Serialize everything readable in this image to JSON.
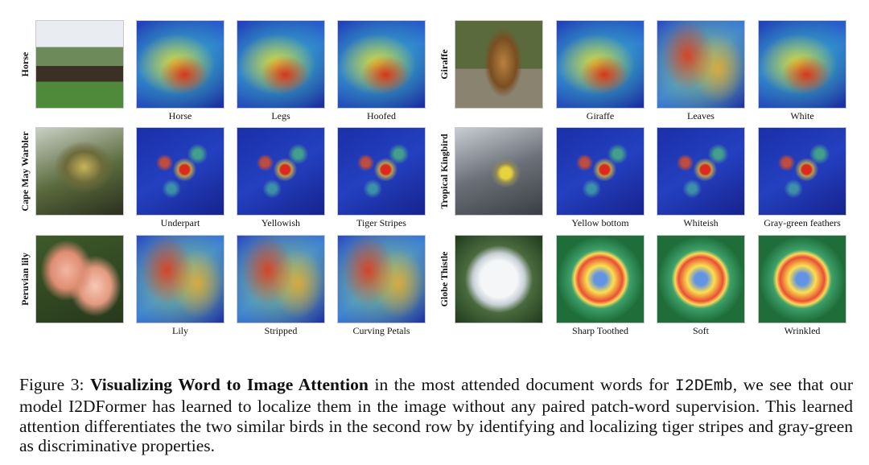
{
  "figure": {
    "panels": [
      {
        "class_label": "Horse",
        "photo_icon": "horse-racing-photo",
        "attention": [
          "Horse",
          "Legs",
          "Hoofed"
        ]
      },
      {
        "class_label": "Giraffe",
        "photo_icon": "giraffe-photo",
        "attention": [
          "Giraffe",
          "Leaves",
          "White"
        ]
      },
      {
        "class_label": "Cape May Warbler",
        "photo_icon": "warbler-photo",
        "attention": [
          "Underpart",
          "Yellowish",
          "Tiger Stripes"
        ]
      },
      {
        "class_label": "Tropical Kingbird",
        "photo_icon": "kingbird-photo",
        "attention": [
          "Yellow bottom",
          "Whiteish",
          "Gray-green feathers"
        ]
      },
      {
        "class_label": "Peruvian lily",
        "photo_icon": "lily-photo",
        "attention": [
          "Lily",
          "Stripped",
          "Curving Petals"
        ]
      },
      {
        "class_label": "Globe Thistle",
        "photo_icon": "thistle-photo",
        "attention": [
          "Sharp Toothed",
          "Soft",
          "Wrinkled"
        ]
      }
    ]
  },
  "caption": {
    "prefix": "Figure 3: ",
    "bold": "Visualizing Word to Image Attention",
    "middle": " in the most attended document words for ",
    "code": "I2DEmb",
    "rest": ", we see that our model I2DFormer has learned to localize them in the image without any paired patch-word supervision. This learned attention differentiates the two similar birds in the second row by identifying and localizing tiger stripes and gray-green as discriminative properties."
  }
}
